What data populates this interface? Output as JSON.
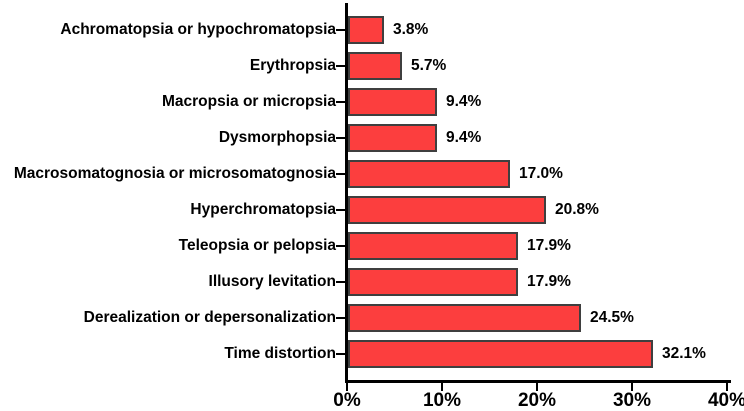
{
  "chart_data": {
    "type": "bar",
    "orientation": "horizontal",
    "title": "",
    "xlabel": "",
    "ylabel": "",
    "categories": [
      "Achromatopsia or hypochromatopsia",
      "Erythropsia",
      "Macropsia or micropsia",
      "Dysmorphopsia",
      "Macrosomatognosia or microsomatognosia",
      "Hyperchromatopsia",
      "Teleopsia or pelopsia",
      "Illusory levitation",
      "Derealization or depersonalization",
      "Time distortion"
    ],
    "values": [
      3.8,
      5.7,
      9.4,
      9.4,
      17.0,
      20.8,
      17.9,
      17.9,
      24.5,
      32.1
    ],
    "value_labels": [
      "3.8%",
      "5.7%",
      "9.4%",
      "9.4%",
      "17.0%",
      "20.8%",
      "17.9%",
      "17.9%",
      "24.5%",
      "32.1%"
    ],
    "x_ticks": [
      0,
      10,
      20,
      30,
      40
    ],
    "x_tick_labels": [
      "0%",
      "10%",
      "20%",
      "30%",
      "40%"
    ],
    "xlim": [
      0,
      40
    ],
    "grid": false,
    "legend": false,
    "colors": {
      "bar_fill": "#FC3E3E",
      "bar_border": "#3F3F3F",
      "axis": "#000000",
      "text": "#000000",
      "background": "#FFFFFF"
    }
  }
}
